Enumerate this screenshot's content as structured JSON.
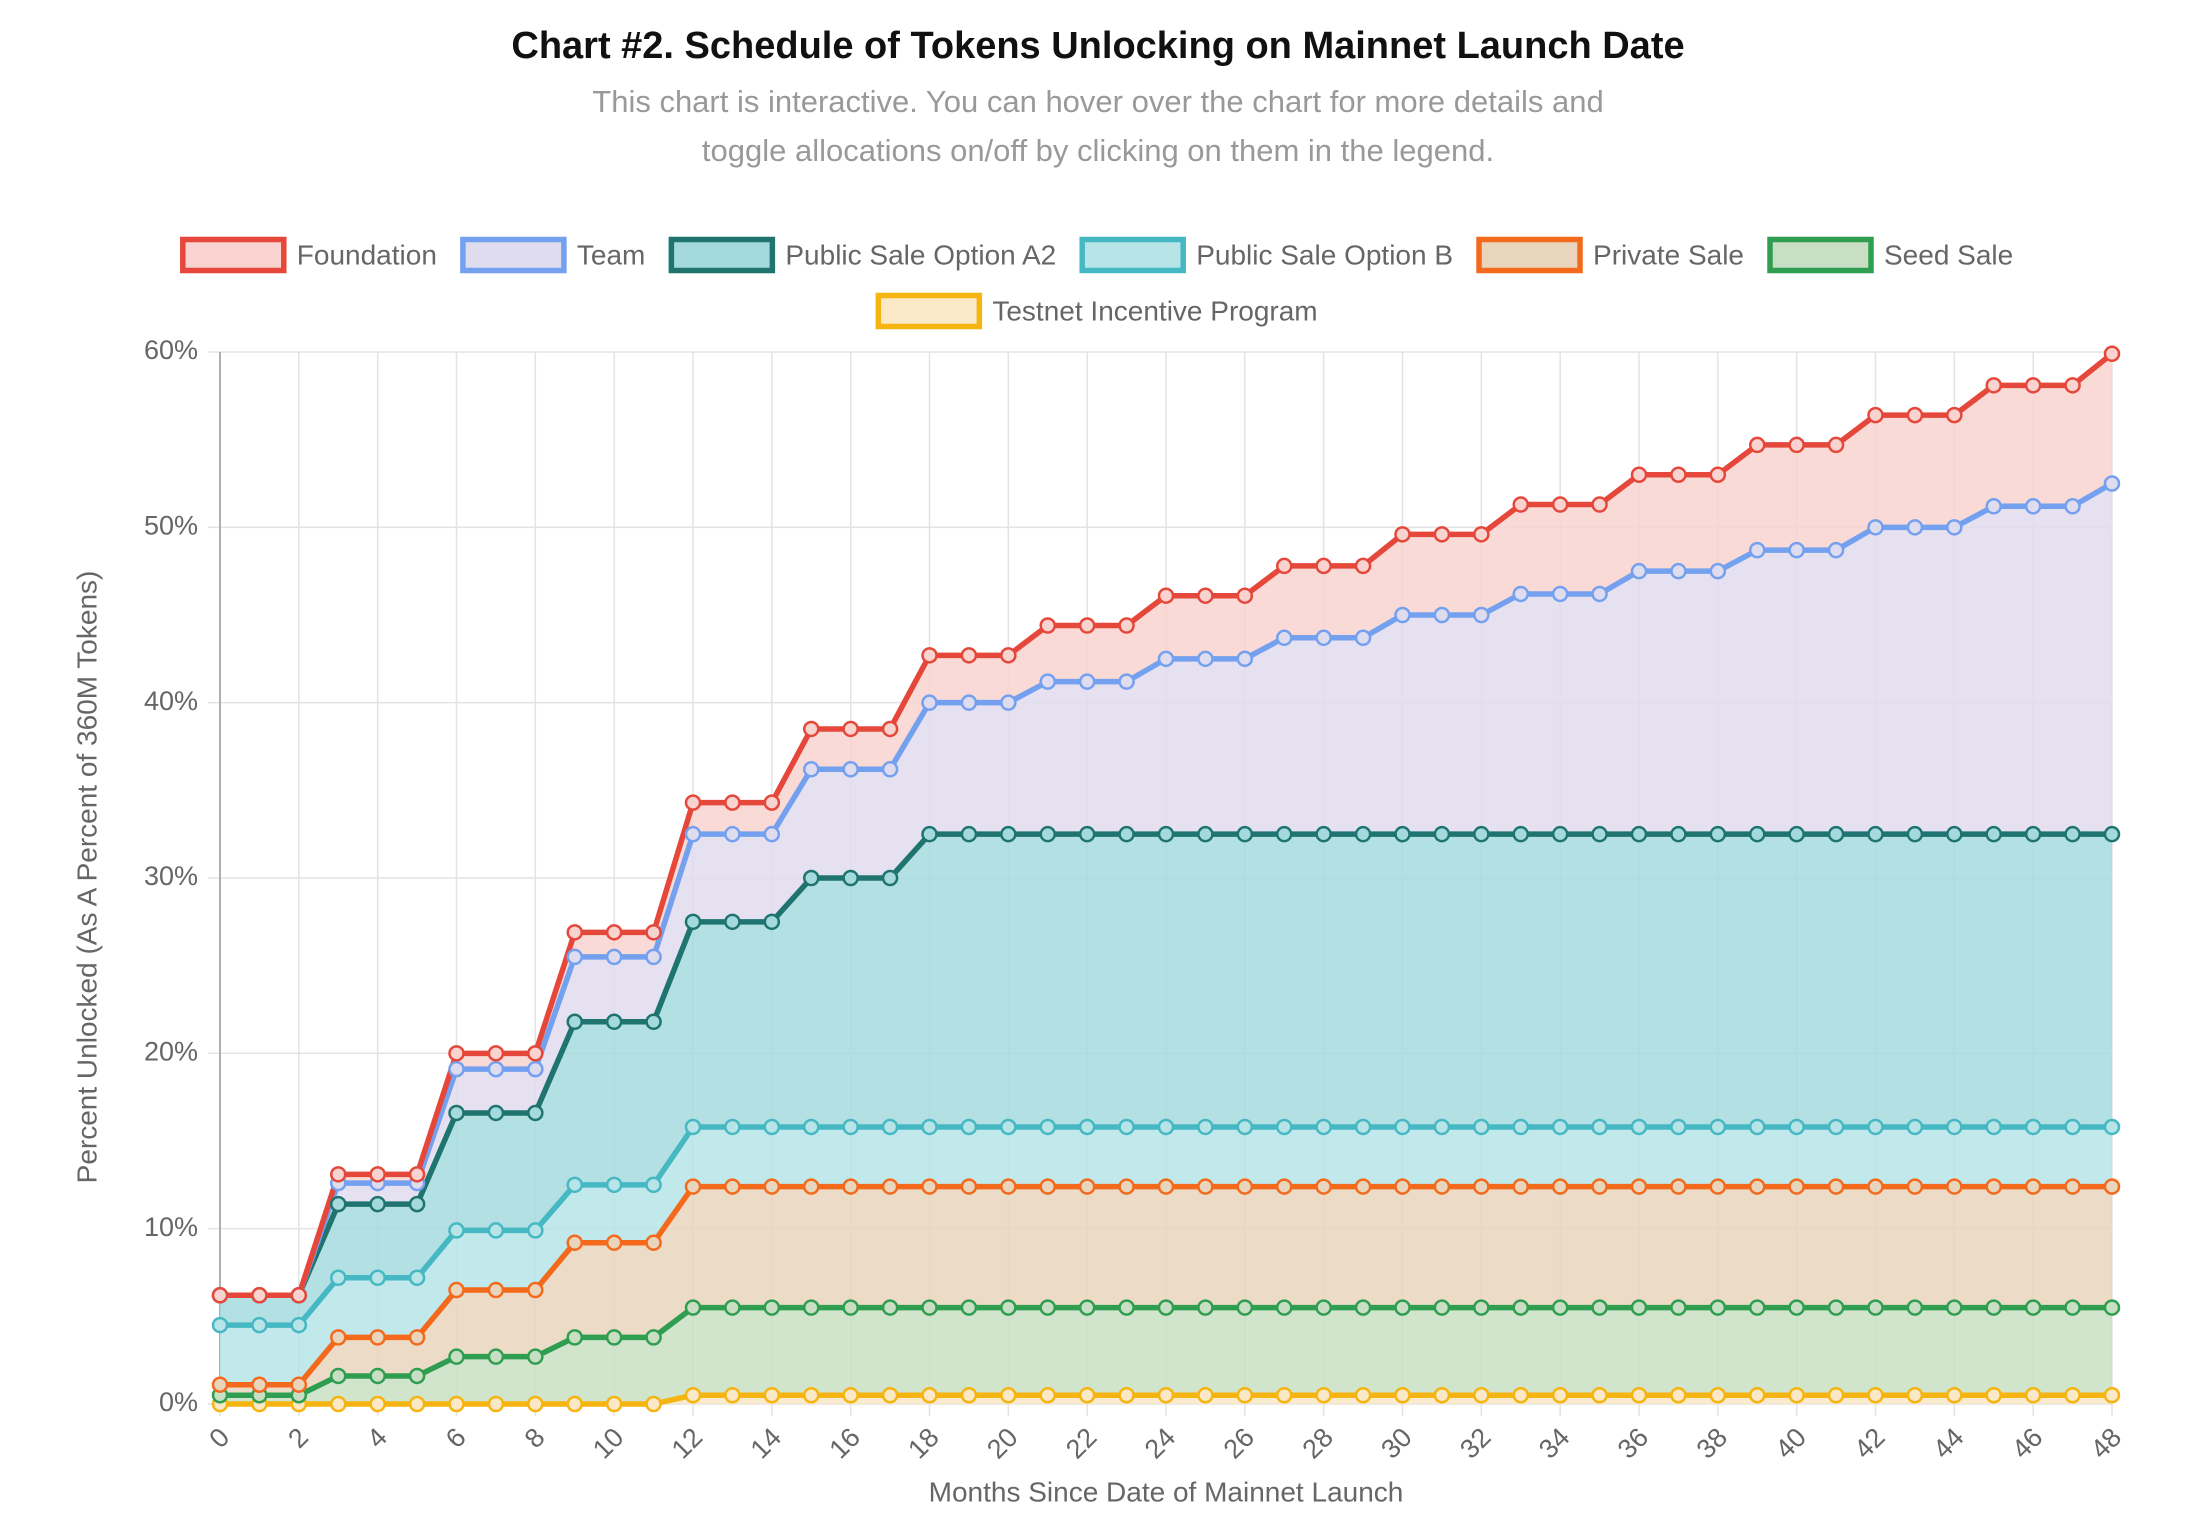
{
  "chart_data": {
    "type": "area",
    "stacked": true,
    "title": "Chart #2. Schedule of Tokens Unlocking on Mainnet Launch Date",
    "subtitle": [
      "This chart is interactive. You can hover over the chart for more details and",
      "toggle allocations on/off by clicking on them in the legend."
    ],
    "x_label": "Months Since Date of Mainnet Launch",
    "y_label": "Percent Unlocked (As A Percent of 360M Tokens)",
    "x": [
      0,
      1,
      2,
      3,
      4,
      5,
      6,
      7,
      8,
      9,
      10,
      11,
      12,
      13,
      14,
      15,
      16,
      17,
      18,
      19,
      20,
      21,
      22,
      23,
      24,
      25,
      26,
      27,
      28,
      29,
      30,
      31,
      32,
      33,
      34,
      35,
      36,
      37,
      38,
      39,
      40,
      41,
      42,
      43,
      44,
      45,
      46,
      47,
      48
    ],
    "xlim": [
      0,
      48
    ],
    "xticks": [
      0,
      2,
      4,
      6,
      8,
      10,
      12,
      14,
      16,
      18,
      20,
      22,
      24,
      26,
      28,
      30,
      32,
      34,
      36,
      38,
      40,
      42,
      44,
      46,
      48
    ],
    "ylim": [
      0,
      60
    ],
    "yticks": [
      {
        "value": 0,
        "label": "0%"
      },
      {
        "value": 10,
        "label": "10%"
      },
      {
        "value": 20,
        "label": "20%"
      },
      {
        "value": 30,
        "label": "30%"
      },
      {
        "value": 40,
        "label": "40%"
      },
      {
        "value": 50,
        "label": "50%"
      },
      {
        "value": 60,
        "label": "60%"
      }
    ],
    "grid": true,
    "legend": "top",
    "series": [
      {
        "name": "Foundation",
        "color": "#e5483a",
        "fill": "#f8d3cf",
        "values": [
          0,
          0,
          0,
          0.5,
          0.5,
          0.5,
          0.9,
          0.9,
          0.9,
          1.4,
          1.4,
          1.4,
          1.8,
          1.8,
          1.8,
          2.3,
          2.3,
          2.3,
          2.7,
          2.7,
          2.7,
          3.2,
          3.2,
          3.2,
          3.6,
          3.6,
          3.6,
          4.1,
          4.1,
          4.1,
          4.6,
          4.6,
          4.6,
          5.1,
          5.1,
          5.1,
          5.5,
          5.5,
          5.5,
          6.0,
          6.0,
          6.0,
          6.4,
          6.4,
          6.4,
          6.9,
          6.9,
          6.9,
          7.4
        ]
      },
      {
        "name": "Team",
        "color": "#74a0f0",
        "fill": "#e0dcef",
        "values": [
          0,
          0,
          0,
          1.2,
          1.2,
          1.2,
          2.5,
          2.5,
          2.5,
          3.7,
          3.7,
          3.7,
          5.0,
          5.0,
          5.0,
          6.2,
          6.2,
          6.2,
          7.5,
          7.5,
          7.5,
          8.7,
          8.7,
          8.7,
          10.0,
          10.0,
          10.0,
          11.2,
          11.2,
          11.2,
          12.5,
          12.5,
          12.5,
          13.7,
          13.7,
          13.7,
          15.0,
          15.0,
          15.0,
          16.2,
          16.2,
          16.2,
          17.5,
          17.5,
          17.5,
          18.7,
          18.7,
          18.7,
          20.0
        ]
      },
      {
        "name": "Public Sale Option A2",
        "color": "#1f7470",
        "fill": "#a4dade",
        "values": [
          1.7,
          1.7,
          1.7,
          4.2,
          4.2,
          4.2,
          6.7,
          6.7,
          6.7,
          9.3,
          9.3,
          9.3,
          11.7,
          11.7,
          11.7,
          14.2,
          14.2,
          14.2,
          16.7,
          16.7,
          16.7,
          16.7,
          16.7,
          16.7,
          16.7,
          16.7,
          16.7,
          16.7,
          16.7,
          16.7,
          16.7,
          16.7,
          16.7,
          16.7,
          16.7,
          16.7,
          16.7,
          16.7,
          16.7,
          16.7,
          16.7,
          16.7,
          16.7,
          16.7,
          16.7,
          16.7,
          16.7,
          16.7,
          16.7
        ]
      },
      {
        "name": "Public Sale Option B",
        "color": "#46b8c4",
        "fill": "#b6e4e7",
        "values": [
          3.4,
          3.4,
          3.4,
          3.4,
          3.4,
          3.4,
          3.4,
          3.4,
          3.4,
          3.3,
          3.3,
          3.3,
          3.4,
          3.4,
          3.4,
          3.4,
          3.4,
          3.4,
          3.4,
          3.4,
          3.4,
          3.4,
          3.4,
          3.4,
          3.4,
          3.4,
          3.4,
          3.4,
          3.4,
          3.4,
          3.4,
          3.4,
          3.4,
          3.4,
          3.4,
          3.4,
          3.4,
          3.4,
          3.4,
          3.4,
          3.4,
          3.4,
          3.4,
          3.4,
          3.4,
          3.4,
          3.4,
          3.4,
          3.4
        ]
      },
      {
        "name": "Private Sale",
        "color": "#f46a1c",
        "fill": "#e9d5bc",
        "values": [
          0.6,
          0.6,
          0.6,
          2.2,
          2.2,
          2.2,
          3.8,
          3.8,
          3.8,
          5.4,
          5.4,
          5.4,
          6.9,
          6.9,
          6.9,
          6.9,
          6.9,
          6.9,
          6.9,
          6.9,
          6.9,
          6.9,
          6.9,
          6.9,
          6.9,
          6.9,
          6.9,
          6.9,
          6.9,
          6.9,
          6.9,
          6.9,
          6.9,
          6.9,
          6.9,
          6.9,
          6.9,
          6.9,
          6.9,
          6.9,
          6.9,
          6.9,
          6.9,
          6.9,
          6.9,
          6.9,
          6.9,
          6.9,
          6.9
        ]
      },
      {
        "name": "Seed Sale",
        "color": "#2f9e50",
        "fill": "#c9dfc3",
        "values": [
          0.5,
          0.5,
          0.5,
          1.6,
          1.6,
          1.6,
          2.7,
          2.7,
          2.7,
          3.8,
          3.8,
          3.8,
          5.0,
          5.0,
          5.0,
          5.0,
          5.0,
          5.0,
          5.0,
          5.0,
          5.0,
          5.0,
          5.0,
          5.0,
          5.0,
          5.0,
          5.0,
          5.0,
          5.0,
          5.0,
          5.0,
          5.0,
          5.0,
          5.0,
          5.0,
          5.0,
          5.0,
          5.0,
          5.0,
          5.0,
          5.0,
          5.0,
          5.0,
          5.0,
          5.0,
          5.0,
          5.0,
          5.0,
          5.0
        ]
      },
      {
        "name": "Testnet Incentive Program",
        "color": "#f5b40f",
        "fill": "#fae8c6",
        "values": [
          0,
          0,
          0,
          0,
          0,
          0,
          0,
          0,
          0,
          0,
          0,
          0,
          0.5,
          0.5,
          0.5,
          0.5,
          0.5,
          0.5,
          0.5,
          0.5,
          0.5,
          0.5,
          0.5,
          0.5,
          0.5,
          0.5,
          0.5,
          0.5,
          0.5,
          0.5,
          0.5,
          0.5,
          0.5,
          0.5,
          0.5,
          0.5,
          0.5,
          0.5,
          0.5,
          0.5,
          0.5,
          0.5,
          0.5,
          0.5,
          0.5,
          0.5,
          0.5,
          0.5,
          0.5
        ]
      }
    ]
  }
}
